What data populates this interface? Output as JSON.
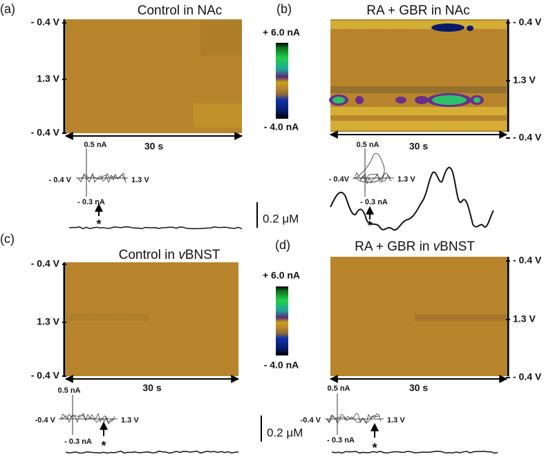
{
  "panels": [
    {
      "label": "(a)",
      "title_parts": [
        "Control in NAc"
      ],
      "y_labels": [
        "- 0.4 V",
        "1.3 V",
        "- 0.4 V"
      ],
      "time": "30 s",
      "inset": {
        "current_top": "0.5 nA",
        "voltage_left": "- 0.4 V",
        "voltage_right": "1.3 V",
        "current_bottom": "- 0.3 nA",
        "marker": "*"
      }
    },
    {
      "label": "(b)",
      "title_parts": [
        "RA + GBR in NAc"
      ],
      "y_labels": [
        "- 0.4 V",
        "1.3 V",
        "- 0.4 V"
      ],
      "time": "30 s",
      "inset": {
        "current_top": "0.5 nA",
        "voltage_left": "- 0.4V",
        "voltage_right": "1.3 V",
        "current_bottom": "- 0.3 nA",
        "marker": "*"
      }
    },
    {
      "label": "(c)",
      "title_parts": [
        "Control in ",
        "v",
        "BNST"
      ],
      "y_labels": [
        "- 0.4 V",
        "1.3 V",
        "- 0.4 V"
      ],
      "time": "30 s",
      "inset": {
        "current_top": "0.5 nA",
        "voltage_left": "-0.4 V",
        "voltage_right": "1.3 V",
        "current_bottom": "- 0.3 nA",
        "marker": "*"
      }
    },
    {
      "label": "(d)",
      "title_parts": [
        "RA + GBR in ",
        "v",
        "BNST"
      ],
      "y_labels": [
        "- 0.4 V",
        "1.3 V",
        "- 0.4 V"
      ],
      "time": "30 s",
      "inset": {
        "current_top": "0.5 nA",
        "voltage_left": "-0.4 V",
        "voltage_right": "1.3 V",
        "current_bottom": "- 0.3 nA",
        "marker": "*"
      }
    }
  ],
  "colorbars": [
    {
      "top": "+ 6.0 nA",
      "bottom": "- 4.0 nA"
    },
    {
      "top": "+ 6.0 nA",
      "bottom": "- 4.0 nA"
    }
  ],
  "scale_bars": [
    {
      "label": "0.2 μM"
    },
    {
      "label": "0.2 μM"
    }
  ]
}
